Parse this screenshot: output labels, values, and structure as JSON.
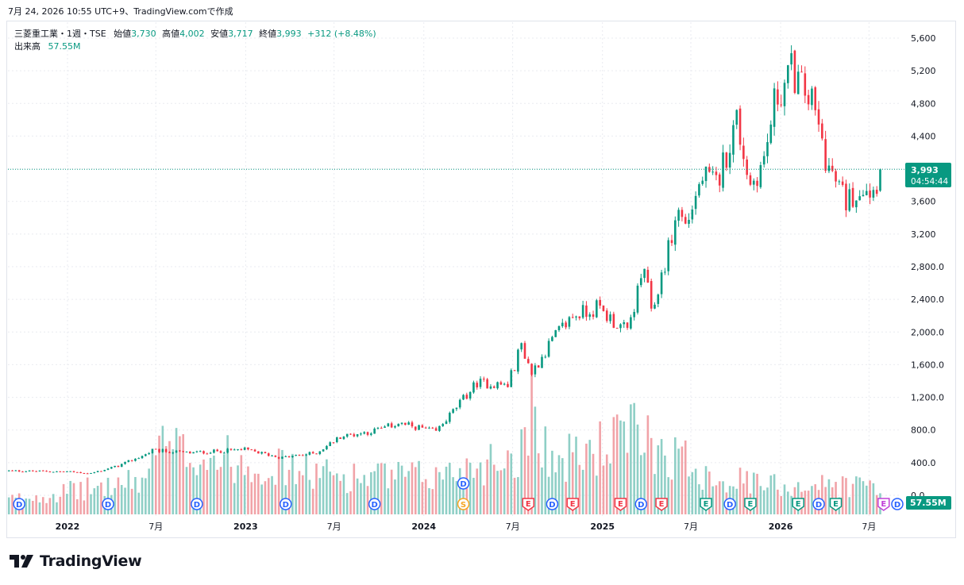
{
  "header": {
    "timestamp": "7月 24, 2026 10:55 UTC+9、TradingView.comで作成"
  },
  "legend": {
    "symbol": "三菱重工業・1週・TSE",
    "open_label": "始値",
    "open": "3,730",
    "high_label": "高値",
    "high": "4,002",
    "low_label": "安値",
    "low": "3,717",
    "close_label": "終値",
    "close": "3,993",
    "change": "+312 (+8.48%)",
    "volume_label": "出来高",
    "volume": "57.55M"
  },
  "price_badge": {
    "price": "3,993",
    "countdown": "04:54:44"
  },
  "volume_badge": "57.55M",
  "brand": {
    "name": "TradingView"
  },
  "colors": {
    "up": "#089981",
    "down": "#f23645",
    "up_volume": "#8fcfc6",
    "down_volume": "#f1a3a8",
    "grid": "#e9ebf0",
    "dividend": "#2962ff",
    "earnings": "#f23645",
    "split": "#f5a623"
  },
  "chart_data": {
    "type": "candlestick",
    "series_name": "三菱重工業・1週・TSE",
    "y_ticks": [
      "5,600",
      "5,200",
      "4,800",
      "4,400",
      "4,000",
      "3,600",
      "3,200",
      "2,800.0",
      "2,400.0",
      "2,000.0",
      "1,600.0",
      "1,200.0",
      "800.0",
      "400.0",
      "0.0"
    ],
    "x_ticks": [
      "2022",
      "7月",
      "2023",
      "7月",
      "2024",
      "7月",
      "2025",
      "7月",
      "2026",
      "7月"
    ],
    "x_tick_dates": [
      "2022-01-01",
      "2022-07-01",
      "2023-01-01",
      "2023-07-01",
      "2024-01-01",
      "2024-07-01",
      "2025-01-01",
      "2025-07-01",
      "2026-01-01",
      "2026-07-01"
    ],
    "x_range": [
      "2021-09-01",
      "2026-08-28"
    ],
    "y_range": [
      0,
      5800
    ],
    "last_close": 3993,
    "price_waypoints": [
      [
        "2021-09-03",
        300
      ],
      [
        "2021-12-31",
        290
      ],
      [
        "2022-02-18",
        270
      ],
      [
        "2022-04-15",
        360
      ],
      [
        "2022-06-10",
        500
      ],
      [
        "2022-06-24",
        550
      ],
      [
        "2022-09-09",
        520
      ],
      [
        "2022-12-30",
        560
      ],
      [
        "2023-03-17",
        460
      ],
      [
        "2023-05-26",
        520
      ],
      [
        "2023-07-14",
        720
      ],
      [
        "2023-09-15",
        780
      ],
      [
        "2023-11-10",
        880
      ],
      [
        "2023-12-22",
        830
      ],
      [
        "2024-01-26",
        780
      ],
      [
        "2024-04-19",
        1380
      ],
      [
        "2024-06-21",
        1350
      ],
      [
        "2024-07-19",
        1850
      ],
      [
        "2024-08-09",
        1500
      ],
      [
        "2024-09-20",
        1900
      ],
      [
        "2024-11-01",
        2200
      ],
      [
        "2024-12-20",
        2300
      ],
      [
        "2025-02-21",
        2000
      ],
      [
        "2025-03-28",
        2800
      ],
      [
        "2025-04-11",
        2200
      ],
      [
        "2025-06-06",
        3500
      ],
      [
        "2025-06-20",
        3300
      ],
      [
        "2025-07-25",
        3900
      ],
      [
        "2025-08-22",
        3800
      ],
      [
        "2025-10-03",
        4600
      ],
      [
        "2025-10-31",
        3800
      ],
      [
        "2025-11-28",
        4100
      ],
      [
        "2025-12-19",
        4800
      ],
      [
        "2026-01-23",
        5200
      ],
      [
        "2026-03-06",
        4800
      ],
      [
        "2026-04-10",
        4000
      ],
      [
        "2026-05-15",
        3600
      ],
      [
        "2026-06-19",
        3800
      ],
      [
        "2026-07-10",
        3730
      ],
      [
        "2026-07-24",
        3993
      ]
    ],
    "volume_range": [
      0,
      300
    ],
    "volume_waypoints": [
      [
        "2021-09-03",
        35
      ],
      [
        "2022-06-10",
        80
      ],
      [
        "2022-06-24",
        160
      ],
      [
        "2023-07-14",
        90
      ],
      [
        "2024-01-26",
        90
      ],
      [
        "2024-07-19",
        150
      ],
      [
        "2024-08-09",
        280
      ],
      [
        "2024-09-20",
        120
      ],
      [
        "2025-03-28",
        200
      ],
      [
        "2025-04-11",
        170
      ],
      [
        "2025-08-22",
        90
      ],
      [
        "2025-11-28",
        70
      ],
      [
        "2026-07-24",
        70
      ]
    ],
    "events": [
      {
        "type": "D",
        "date": "2021-09-24"
      },
      {
        "type": "D",
        "date": "2022-03-25"
      },
      {
        "type": "D",
        "date": "2022-09-23"
      },
      {
        "type": "D",
        "date": "2023-03-24"
      },
      {
        "type": "D",
        "date": "2023-09-22"
      },
      {
        "type": "D",
        "date": "2024-03-22"
      },
      {
        "type": "S",
        "date": "2024-03-22"
      },
      {
        "type": "E",
        "date": "2024-08-02"
      },
      {
        "type": "D",
        "date": "2024-09-20"
      },
      {
        "type": "E",
        "date": "2024-11-01"
      },
      {
        "type": "E",
        "date": "2025-02-07"
      },
      {
        "type": "D",
        "date": "2025-03-21"
      },
      {
        "type": "E",
        "date": "2025-05-02"
      },
      {
        "type": "E",
        "date": "2025-08-01"
      },
      {
        "type": "D",
        "date": "2025-09-19"
      },
      {
        "type": "E",
        "date": "2025-10-31"
      },
      {
        "type": "E",
        "date": "2026-02-06"
      },
      {
        "type": "D",
        "date": "2026-03-20"
      },
      {
        "type": "E",
        "date": "2026-04-24"
      },
      {
        "type": "E",
        "date": "2026-07-31"
      },
      {
        "type": "D",
        "date": "2026-08-28"
      }
    ]
  }
}
